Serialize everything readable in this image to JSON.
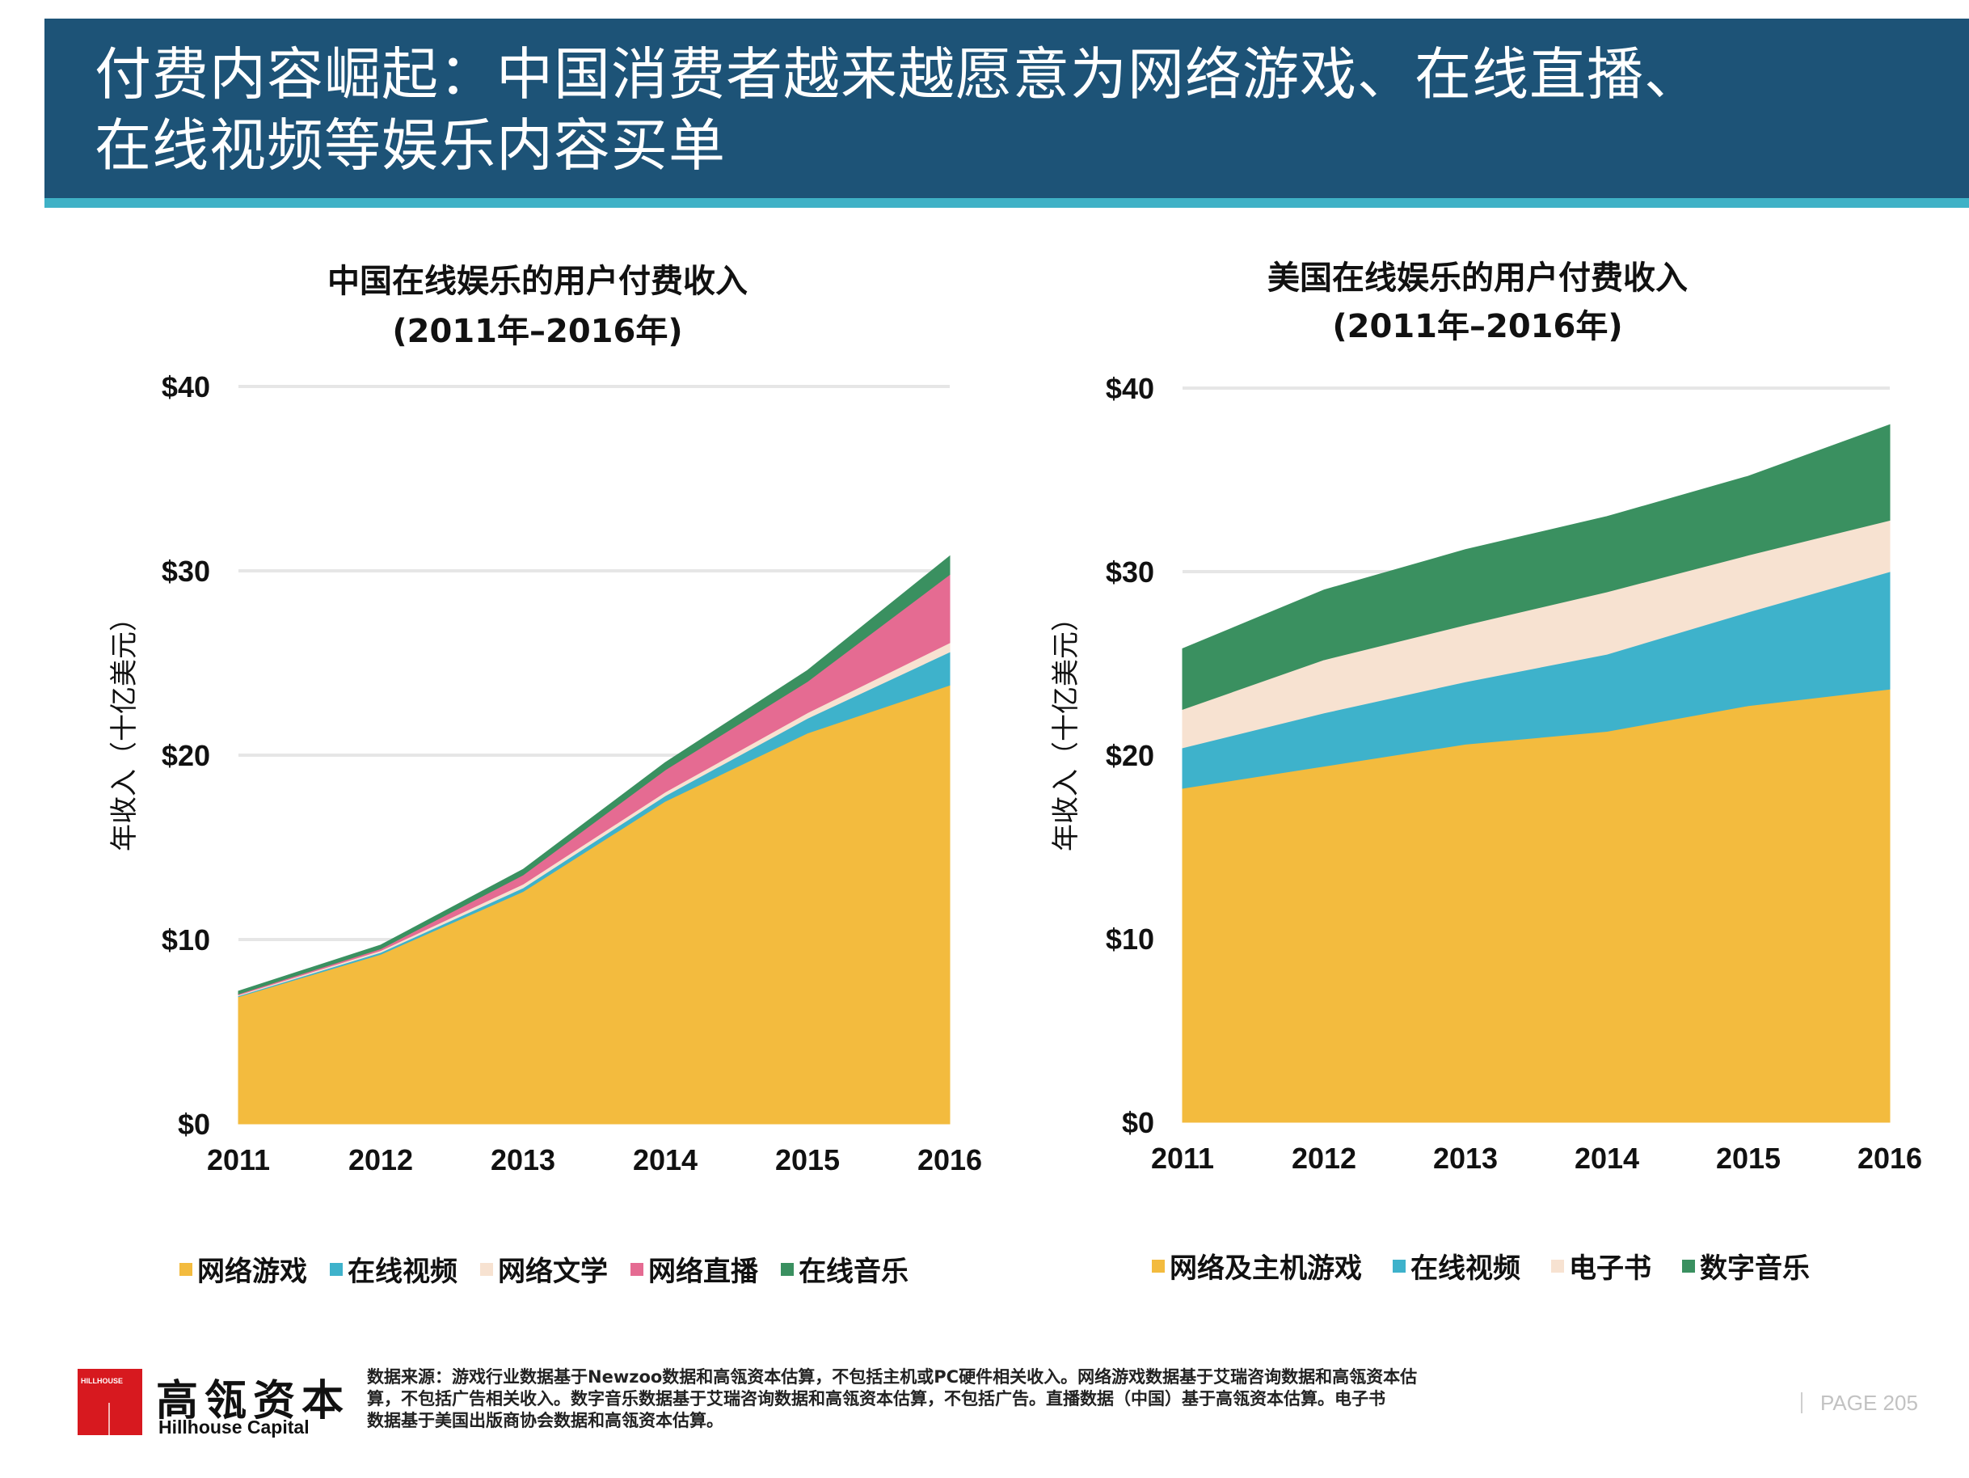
{
  "header": {
    "title_line1": "付费内容崛起：中国消费者越来越愿意为网络游戏、在线直播、",
    "title_line2": "在线视频等娱乐内容买单"
  },
  "colors": {
    "header_bg": "#1d5377",
    "header_band": "#3fb1c6",
    "games": "#f3bb3e",
    "video": "#3eb2cb",
    "literature": "#f7e2d1",
    "live": "#e56b92",
    "music": "#3a9060",
    "brand_red": "#d7191f"
  },
  "chart_data": [
    {
      "type": "area",
      "stacked": true,
      "title": "中国在线娱乐的用户付费收入",
      "subtitle": "(2011年–2016年)",
      "xlabel": "",
      "ylabel": "年收入（十亿美元）",
      "x": [
        "2011",
        "2012",
        "2013",
        "2014",
        "2015",
        "2016"
      ],
      "yticks": [
        "$0",
        "$10",
        "$20",
        "$30",
        "$40"
      ],
      "ylim": [
        0,
        40
      ],
      "grid": true,
      "legend_position": "bottom",
      "series": [
        {
          "name": "网络游戏",
          "color_key": "games",
          "values": [
            6.9,
            9.2,
            12.6,
            17.5,
            21.2,
            23.8
          ]
        },
        {
          "name": "在线视频",
          "color_key": "video",
          "values": [
            0.05,
            0.1,
            0.2,
            0.3,
            0.8,
            1.8
          ]
        },
        {
          "name": "网络文学",
          "color_key": "literature",
          "values": [
            0.05,
            0.1,
            0.2,
            0.2,
            0.3,
            0.5
          ]
        },
        {
          "name": "网络直播",
          "color_key": "live",
          "values": [
            0.05,
            0.1,
            0.5,
            1.2,
            1.7,
            3.7
          ]
        },
        {
          "name": "在线音乐",
          "color_key": "music",
          "values": [
            0.15,
            0.2,
            0.3,
            0.4,
            0.6,
            1.0
          ]
        }
      ]
    },
    {
      "type": "area",
      "stacked": true,
      "title": "美国在线娱乐的用户付费收入",
      "subtitle": "(2011年–2016年)",
      "xlabel": "",
      "ylabel": "年收入（十亿美元）",
      "x": [
        "2011",
        "2012",
        "2013",
        "2014",
        "2015",
        "2016"
      ],
      "yticks": [
        "$0",
        "$10",
        "$20",
        "$30",
        "$40"
      ],
      "ylim": [
        0,
        40
      ],
      "grid": true,
      "legend_position": "bottom",
      "series": [
        {
          "name": "网络及主机游戏",
          "color_key": "games",
          "values": [
            18.2,
            19.4,
            20.6,
            21.3,
            22.7,
            23.6
          ]
        },
        {
          "name": "在线视频",
          "color_key": "video",
          "values": [
            2.2,
            2.9,
            3.4,
            4.2,
            5.1,
            6.4
          ]
        },
        {
          "name": "电子书",
          "color_key": "literature",
          "values": [
            2.1,
            2.9,
            3.1,
            3.4,
            3.1,
            2.8
          ]
        },
        {
          "name": "数字音乐",
          "color_key": "music",
          "values": [
            3.3,
            3.8,
            4.1,
            4.1,
            4.3,
            5.2
          ]
        }
      ]
    }
  ],
  "footer": {
    "logo_text": "HILLHOUSE",
    "brand_cn": "高瓴资本",
    "brand_en": "Hillhouse Capital",
    "source_line1": "数据来源：游戏行业数据基于Newzoo数据和高瓴资本估算，不包括主机或PC硬件相关收入。网络游戏数据基于艾瑞咨询数据和高瓴资本估",
    "source_line2": "算，不包括广告相关收入。数字音乐数据基于艾瑞咨询数据和高瓴资本估算，不包括广告。直播数据（中国）基于高瓴资本估算。电子书",
    "source_line3": "数据基于美国出版商协会数据和高瓴资本估算。",
    "page_label": "PAGE 205"
  }
}
